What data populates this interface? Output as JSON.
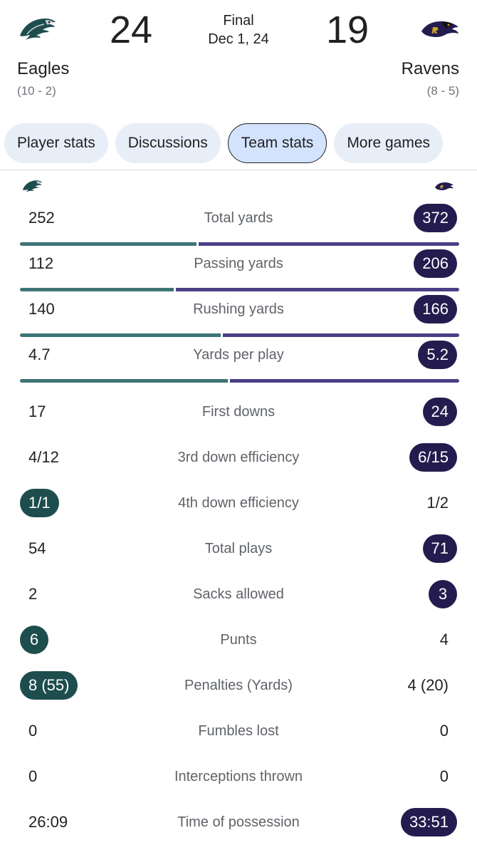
{
  "game": {
    "status": "Final",
    "date": "Dec 1, 24"
  },
  "home": {
    "name": "Eagles",
    "score": "24",
    "record": "(10 - 2)",
    "logo": "eagles-logo",
    "color": "#1e4d4e"
  },
  "away": {
    "name": "Ravens",
    "score": "19",
    "record": "(8 - 5)",
    "logo": "ravens-logo",
    "color": "#241c4e"
  },
  "tabs": [
    {
      "label": "Player stats",
      "active": false
    },
    {
      "label": "Discussions",
      "active": false
    },
    {
      "label": "Team stats",
      "active": true
    },
    {
      "label": "More games",
      "active": false
    }
  ],
  "stats": [
    {
      "label": "Total yards",
      "home": "252",
      "away": "372",
      "leader": "away",
      "home_share": 0.404
    },
    {
      "label": "Passing yards",
      "home": "112",
      "away": "206",
      "leader": "away",
      "home_share": 0.352
    },
    {
      "label": "Rushing yards",
      "home": "140",
      "away": "166",
      "leader": "away",
      "home_share": 0.458
    },
    {
      "label": "Yards per play",
      "home": "4.7",
      "away": "5.2",
      "leader": "away",
      "home_share": 0.475
    },
    {
      "label": "First downs",
      "home": "17",
      "away": "24",
      "leader": "away"
    },
    {
      "label": "3rd down efficiency",
      "home": "4/12",
      "away": "6/15",
      "leader": "away"
    },
    {
      "label": "4th down efficiency",
      "home": "1/1",
      "away": "1/2",
      "leader": "home"
    },
    {
      "label": "Total plays",
      "home": "54",
      "away": "71",
      "leader": "away"
    },
    {
      "label": "Sacks allowed",
      "home": "2",
      "away": "3",
      "leader": "away"
    },
    {
      "label": "Punts",
      "home": "6",
      "away": "4",
      "leader": "home"
    },
    {
      "label": "Penalties (Yards)",
      "home": "8 (55)",
      "away": "4 (20)",
      "leader": "home"
    },
    {
      "label": "Fumbles lost",
      "home": "0",
      "away": "0",
      "leader": "none"
    },
    {
      "label": "Interceptions thrown",
      "home": "0",
      "away": "0",
      "leader": "none"
    },
    {
      "label": "Time of possession",
      "home": "26:09",
      "away": "33:51",
      "leader": "away"
    }
  ]
}
